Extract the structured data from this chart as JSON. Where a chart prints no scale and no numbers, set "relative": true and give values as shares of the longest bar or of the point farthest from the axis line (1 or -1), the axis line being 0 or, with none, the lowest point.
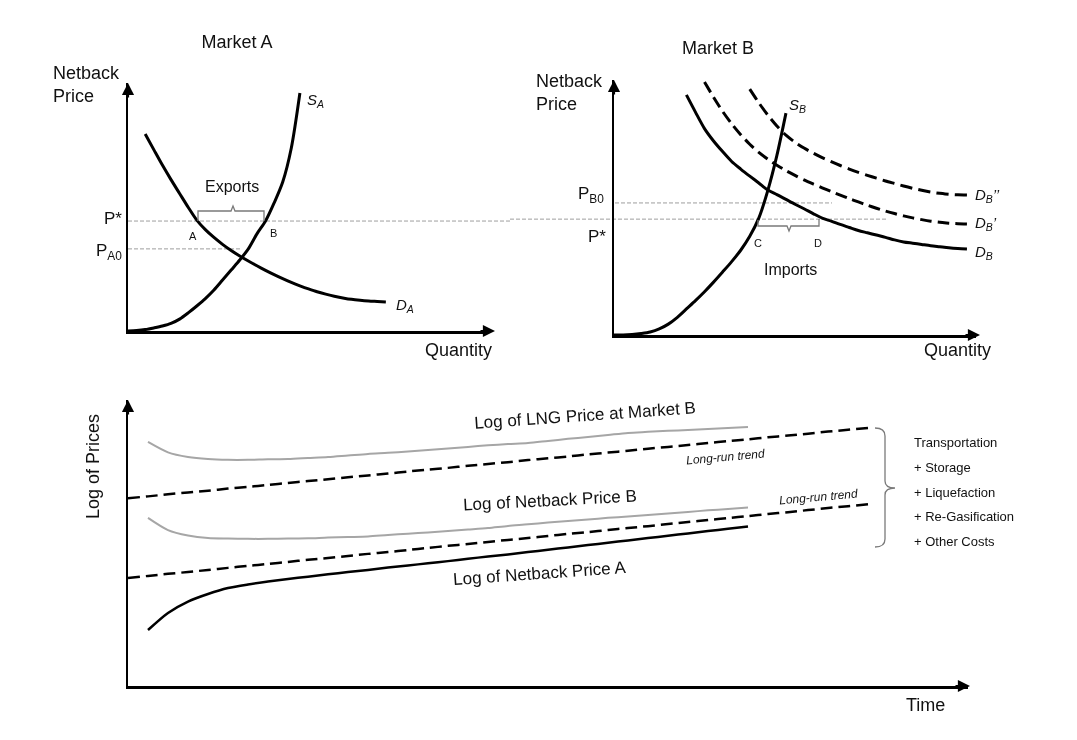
{
  "chart_data": [
    {
      "type": "line",
      "title": "Market A",
      "xlabel": "Quantity",
      "ylabel": "Netback Price",
      "relative": true,
      "categories": [
        null,
        null,
        null,
        null,
        null,
        null,
        null,
        null,
        null,
        null,
        null,
        null,
        null,
        null,
        null,
        null,
        null,
        null,
        null,
        null,
        null,
        null,
        null,
        null,
        null,
        null,
        null,
        null,
        null,
        null,
        null,
        null,
        null,
        null,
        null,
        null,
        null,
        null,
        null,
        null,
        null,
        null,
        null
      ],
      "series": [
        {
          "name": "S$_{A}$",
          "color": "#000000",
          "values": [
            0,
            0.002,
            0.006,
            0.013,
            0.021,
            0.032,
            0.05,
            0.076,
            0.105,
            0.136,
            0.172,
            0.214,
            0.256,
            0.298,
            0.345,
            0.408,
            0.462,
            0.538,
            0.626,
            0.769,
            1,
            null,
            null,
            null,
            null,
            null,
            null,
            null,
            null,
            null,
            null,
            null,
            null,
            null,
            null,
            null,
            null,
            null,
            null,
            null,
            null,
            null,
            null
          ]
        },
        {
          "name": "D$_{A}$",
          "color": "#000000",
          "values": [
            null,
            null,
            0.828,
            0.762,
            0.697,
            0.636,
            0.578,
            0.52,
            0.466,
            0.426,
            0.393,
            0.364,
            0.338,
            0.315,
            0.294,
            0.274,
            0.255,
            0.237,
            0.22,
            0.204,
            0.19,
            0.177,
            0.165,
            0.155,
            0.146,
            0.139,
            0.133,
            0.129,
            0.126,
            0.124,
            0.122,
            null,
            null,
            null,
            null,
            null,
            null,
            null,
            null,
            null,
            null,
            null,
            null
          ]
        }
      ],
      "ref_lines": [
        {
          "axis": "y",
          "value": 0.462,
          "label": "P*",
          "color": "#9e9e9e",
          "line_style": "dashed"
        },
        {
          "axis": "y",
          "value": 0.345,
          "label": "P$_{A0}$",
          "color": "#9e9e9e",
          "line_style": "dashed"
        }
      ],
      "annotations": [
        "Exports",
        "A",
        "B"
      ]
    },
    {
      "type": "line",
      "title": "Market B",
      "xlabel": "Quantity",
      "ylabel": "Netback Price",
      "relative": true,
      "categories": [
        null,
        null,
        null,
        null,
        null,
        null,
        null,
        null,
        null,
        null,
        null,
        null,
        null,
        null,
        null,
        null,
        null,
        null,
        null,
        null,
        null,
        null,
        null,
        null,
        null,
        null,
        null,
        null,
        null,
        null,
        null,
        null,
        null,
        null,
        null,
        null,
        null,
        null,
        null,
        null,
        null
      ],
      "series": [
        {
          "name": "S$_{B}$",
          "color": "#000000",
          "values": [
            0,
            0,
            0.002,
            0.006,
            0.012,
            0.024,
            0.043,
            0.07,
            0.103,
            0.136,
            0.171,
            0.209,
            0.249,
            0.29,
            0.335,
            0.39,
            0.462,
            0.572,
            0.71,
            0.877,
            null,
            null,
            null,
            null,
            null,
            null,
            null,
            null,
            null,
            null,
            null,
            null,
            null,
            null,
            null,
            null,
            null,
            null,
            null,
            null,
            null
          ]
        },
        {
          "name": "D$_{B}$",
          "color": "#000000",
          "values": [
            null,
            null,
            null,
            null,
            null,
            null,
            null,
            null,
            0.949,
            0.881,
            0.816,
            0.767,
            0.725,
            0.686,
            0.656,
            0.628,
            0.601,
            0.573,
            0.555,
            0.536,
            0.517,
            0.499,
            0.48,
            0.462,
            0.45,
            0.437,
            0.425,
            0.413,
            0.404,
            0.395,
            0.386,
            0.376,
            0.368,
            0.363,
            0.358,
            0.353,
            0.349,
            0.345,
            0.342,
            0.34,
            null
          ]
        },
        {
          "name": "D$_{B}$’",
          "color": "#000000",
          "line_style": "dashed",
          "values": [
            null,
            null,
            null,
            null,
            null,
            null,
            null,
            null,
            null,
            null,
            1,
            0.94,
            0.884,
            0.835,
            0.792,
            0.754,
            0.722,
            0.695,
            0.671,
            0.65,
            0.631,
            0.613,
            0.597,
            0.582,
            0.567,
            0.553,
            0.539,
            0.526,
            0.513,
            0.501,
            0.49,
            0.48,
            0.471,
            0.463,
            0.456,
            0.45,
            0.446,
            0.442,
            0.44,
            0.439,
            null
          ]
        },
        {
          "name": "D$_{B}$’’",
          "color": "#000000",
          "line_style": "dashed",
          "values": [
            null,
            null,
            null,
            null,
            null,
            null,
            null,
            null,
            null,
            null,
            null,
            null,
            null,
            null,
            null,
            0.972,
            0.918,
            0.869,
            0.826,
            0.79,
            0.762,
            0.739,
            0.719,
            0.701,
            0.685,
            0.67,
            0.656,
            0.643,
            0.631,
            0.62,
            0.609,
            0.599,
            0.589,
            0.58,
            0.572,
            0.565,
            0.56,
            0.556,
            0.554,
            0.553,
            null
          ]
        }
      ],
      "ref_lines": [
        {
          "axis": "y",
          "value": 0.522,
          "label": "P$_{B0}$",
          "color": "#9e9e9e",
          "line_style": "dashed"
        },
        {
          "axis": "y",
          "value": 0.458,
          "label": "P*",
          "color": "#9e9e9e",
          "line_style": "dashed"
        }
      ],
      "annotations": [
        "C",
        "D",
        "Imports"
      ]
    },
    {
      "type": "line",
      "xlabel": "Time",
      "ylabel": "Log of Prices",
      "relative": true,
      "categories": [
        null,
        null,
        null,
        null,
        null,
        null,
        null,
        null,
        null,
        null,
        null,
        null,
        null,
        null,
        null,
        null,
        null,
        null,
        null,
        null,
        null,
        null,
        null,
        null,
        null,
        null,
        null,
        null,
        null,
        null,
        null,
        null,
        null,
        null,
        null,
        null,
        null,
        null,
        null,
        null,
        null,
        null,
        null
      ],
      "series": [
        {
          "name": "Log of LNG Price at Market B",
          "color": "#a6a6a6",
          "values": [
            null,
            0.942,
            0.902,
            0.884,
            0.876,
            0.873,
            0.873,
            0.875,
            0.876,
            0.88,
            0.884,
            0.89,
            0.896,
            0.9,
            0.905,
            0.911,
            0.917,
            0.923,
            0.929,
            0.934,
            0.938,
            0.946,
            0.954,
            0.961,
            0.969,
            0.977,
            0.981,
            0.985,
            0.988,
            0.992,
            0.996,
            1,
            null,
            null,
            null,
            null,
            null,
            null,
            null,
            null,
            null,
            null,
            null
          ]
        },
        {
          "name": "Long-run trend",
          "color": "#000000",
          "line_style": "dashed",
          "values": [
            0.725,
            0.732,
            0.74,
            0.747,
            0.754,
            0.762,
            0.769,
            0.776,
            0.784,
            0.791,
            0.798,
            0.806,
            0.813,
            0.82,
            0.828,
            0.835,
            0.842,
            0.85,
            0.857,
            0.864,
            0.872,
            0.879,
            0.886,
            0.894,
            0.901,
            0.908,
            0.916,
            0.923,
            0.93,
            0.938,
            0.945,
            0.952,
            0.96,
            0.967,
            0.974,
            0.982,
            0.989,
            0.996,
            null,
            null,
            null,
            null,
            null
          ]
        },
        {
          "name": "Log of Netback Price B",
          "color": "#a6a6a6",
          "values": [
            null,
            0.649,
            0.602,
            0.581,
            0.571,
            0.569,
            0.568,
            0.568,
            0.569,
            0.57,
            0.573,
            0.575,
            0.577,
            0.583,
            0.588,
            0.593,
            0.598,
            0.604,
            0.61,
            0.618,
            0.624,
            0.631,
            0.637,
            0.643,
            0.649,
            0.654,
            0.66,
            0.666,
            0.672,
            0.678,
            0.683,
            0.689,
            null,
            null,
            null,
            null,
            null,
            null,
            null,
            null,
            null,
            null,
            null
          ]
        },
        {
          "name": "Long-run trend",
          "color": "#000000",
          "line_style": "dashed",
          "values": [
            0.417,
            0.425,
            0.433,
            0.44,
            0.448,
            0.456,
            0.464,
            0.471,
            0.479,
            0.487,
            0.494,
            0.502,
            0.51,
            0.517,
            0.525,
            0.533,
            0.541,
            0.548,
            0.556,
            0.564,
            0.571,
            0.579,
            0.587,
            0.594,
            0.602,
            0.61,
            0.617,
            0.625,
            0.633,
            0.641,
            0.648,
            0.656,
            0.664,
            0.671,
            0.679,
            0.687,
            0.694,
            0.702,
            null,
            null,
            null,
            null,
            null
          ]
        },
        {
          "name": "Log of Netback Price A",
          "color": "#000000",
          "values": [
            null,
            0.216,
            0.282,
            0.326,
            0.355,
            0.378,
            0.392,
            0.403,
            0.413,
            0.422,
            0.431,
            0.44,
            0.448,
            0.457,
            0.465,
            0.474,
            0.482,
            0.491,
            0.5,
            0.508,
            0.517,
            0.526,
            0.535,
            0.544,
            0.553,
            0.562,
            0.571,
            0.58,
            0.589,
            0.598,
            0.607,
            0.616,
            null,
            null,
            null,
            null,
            null,
            null,
            null,
            null,
            null,
            null,
            null
          ]
        }
      ],
      "annotations": [
        "Transportation\n+ Storage\n+ Liquefaction\n+ Re-Gasification\n+ Other Costs"
      ]
    }
  ]
}
